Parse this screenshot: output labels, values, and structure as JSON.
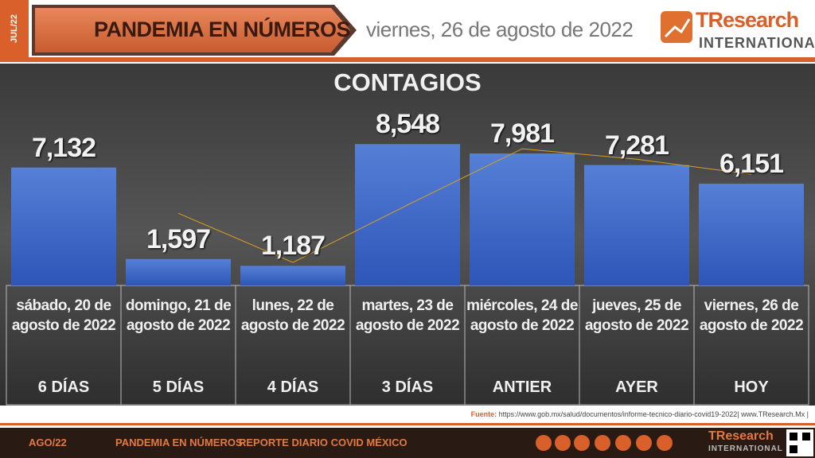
{
  "header": {
    "month_tab": "JUL/22",
    "title": "PANDEMIA EN NÚMEROS",
    "date": "viernes, 26 de agosto de 2022",
    "logo_name": "TResearch",
    "logo_sub": "INTERNATIONAL"
  },
  "chart_data": {
    "type": "bar",
    "title": "CONTAGIOS",
    "categories": [
      "sábado, 20 de agosto de 2022",
      "domingo, 21 de agosto de 2022",
      "lunes, 22 de agosto de 2022",
      "martes, 23 de agosto de 2022",
      "miércoles, 24 de agosto de 2022",
      "jueves, 25 de agosto de 2022",
      "viernes, 26 de agosto de 2022"
    ],
    "periods": [
      "6 DÍAS",
      "5 DÍAS",
      "4 DÍAS",
      "3 DÍAS",
      "ANTIER",
      "AYER",
      "HOY"
    ],
    "values": [
      7132,
      1597,
      1187,
      8548,
      7981,
      7281,
      6151
    ],
    "value_labels": [
      "7,132",
      "1,597",
      "1,187",
      "8,548",
      "7,981",
      "7,281",
      "6,151"
    ],
    "color": "#4470cc",
    "trendline": {
      "values": [
        null,
        4364.5,
        1392,
        4867.5,
        8264.5,
        7631,
        6716
      ],
      "color": "#d9a020"
    },
    "ylim": [
      0,
      10000
    ]
  },
  "footer": {
    "source_label": "Fuente:",
    "source": "https://www.gob.mx/salud/documentos/informe-tecnico-diario-covid19-2022| www.TResearch.Mx |",
    "month": "AGO/22",
    "section": "PANDEMIA EN NÚMEROS",
    "report": "REPORTE DIARIO COVID MÉXICO",
    "logo_name": "TResearch",
    "logo_sub": "INTERNATIONAL"
  }
}
